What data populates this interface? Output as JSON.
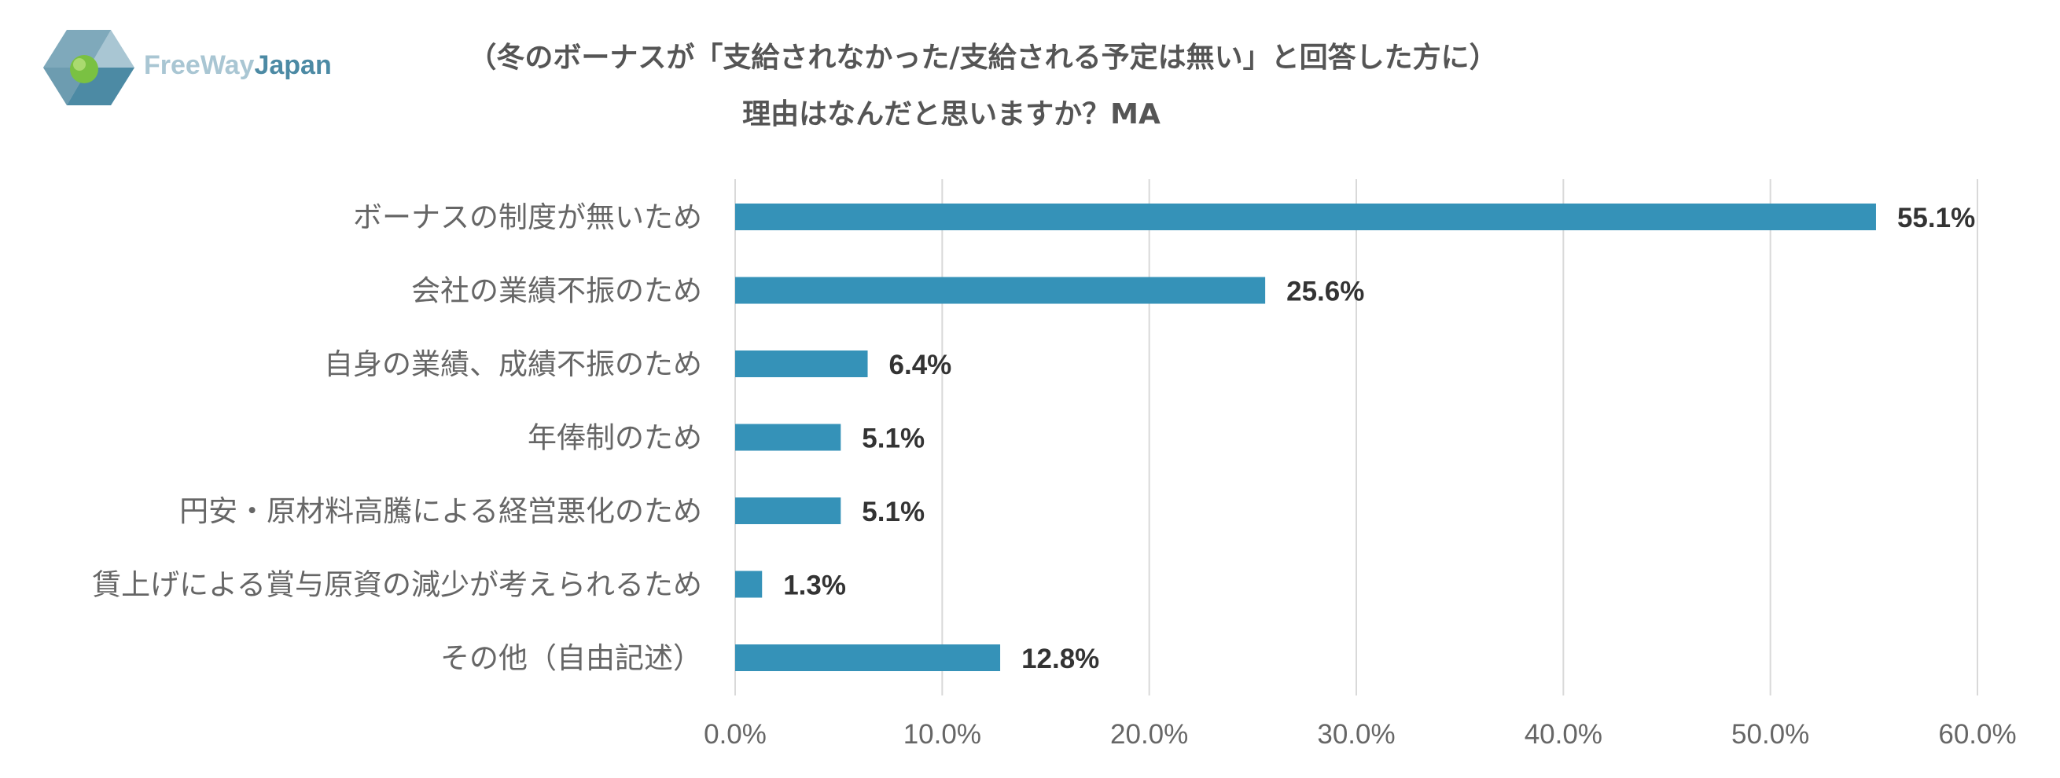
{
  "logo": {
    "text_part1": "FreeWay",
    "text_part2": "Japan",
    "colors": {
      "dark": "#4c8aa4",
      "light": "#a9c6d3",
      "ball": "#7ac142"
    }
  },
  "chart_data": {
    "type": "bar",
    "orientation": "horizontal",
    "title": "（冬のボーナスが「支給されなかった/支給される予定は無い」と回答した方に）",
    "subtitle": "理由はなんだと思いますか？MA",
    "categories": [
      "ボーナスの制度が無いため",
      "会社の業績不振のため",
      "自身の業績、成績不振のため",
      "年俸制のため",
      "円安・原材料高騰による経営悪化のため",
      "賃上げによる賞与原資の減少が考えられるため",
      "その他（自由記述）"
    ],
    "values": [
      55.1,
      25.6,
      6.4,
      5.1,
      5.1,
      1.3,
      12.8
    ],
    "value_labels": [
      "55.1%",
      "25.6%",
      "6.4%",
      "5.1%",
      "5.1%",
      "1.3%",
      "12.8%"
    ],
    "xlim": [
      0,
      60
    ],
    "ticks": [
      0,
      10,
      20,
      30,
      40,
      50,
      60
    ],
    "tick_labels": [
      "0.0%",
      "10.0%",
      "20.0%",
      "30.0%",
      "40.0%",
      "50.0%",
      "60.0%"
    ],
    "grid": true,
    "bar_color": "#3592b8",
    "grid_color": "#d9d9d9"
  }
}
